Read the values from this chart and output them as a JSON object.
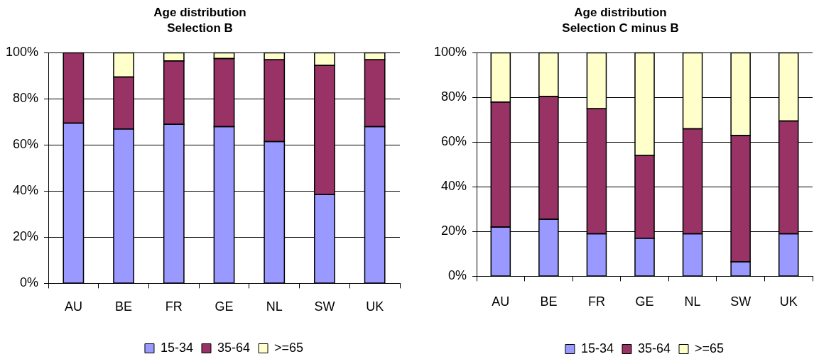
{
  "chart_data": [
    {
      "type": "bar",
      "title": "Age distribution\nSelection B",
      "categories": [
        "AU",
        "BE",
        "FR",
        "GE",
        "NL",
        "SW",
        "UK"
      ],
      "stacked": true,
      "series": [
        {
          "name": "15-34",
          "color": "#9999ff",
          "values": [
            69.5,
            67,
            69,
            68,
            61.5,
            38.5,
            68
          ]
        },
        {
          "name": "35-64",
          "color": "#993366",
          "values": [
            30.5,
            22.5,
            27.5,
            29.5,
            35.5,
            56,
            29
          ]
        },
        {
          "name": ">=65",
          "color": "#ffffcc",
          "values": [
            0,
            10.5,
            3.5,
            2.5,
            3,
            5.5,
            3
          ]
        }
      ],
      "ylim": [
        0,
        100
      ],
      "yticks": [
        {
          "value": 0,
          "label": "0%"
        },
        {
          "value": 20,
          "label": "20%"
        },
        {
          "value": 40,
          "label": "40%"
        },
        {
          "value": 60,
          "label": "60%"
        },
        {
          "value": 80,
          "label": "80%"
        },
        {
          "value": 100,
          "label": "100%"
        }
      ],
      "grid": "y",
      "legend": "bottom"
    },
    {
      "type": "bar",
      "title": "Age distribution\nSelection C minus B",
      "categories": [
        "AU",
        "BE",
        "FR",
        "GE",
        "NL",
        "SW",
        "UK"
      ],
      "stacked": true,
      "series": [
        {
          "name": "15-34",
          "color": "#9999ff",
          "values": [
            22,
            25.5,
            19,
            17,
            19,
            6.5,
            19
          ]
        },
        {
          "name": "35-64",
          "color": "#993366",
          "values": [
            56,
            55,
            56,
            37,
            47,
            56.5,
            50.5
          ]
        },
        {
          "name": ">=65",
          "color": "#ffffcc",
          "values": [
            22,
            19.5,
            25,
            46,
            34,
            37,
            30.5
          ]
        }
      ],
      "ylim": [
        0,
        100
      ],
      "yticks": [
        {
          "value": 0,
          "label": "0%"
        },
        {
          "value": 20,
          "label": "20%"
        },
        {
          "value": 40,
          "label": "40%"
        },
        {
          "value": 60,
          "label": "60%"
        },
        {
          "value": 80,
          "label": "80%"
        },
        {
          "value": 100,
          "label": "100%"
        }
      ],
      "grid": "y",
      "legend": "bottom"
    }
  ]
}
